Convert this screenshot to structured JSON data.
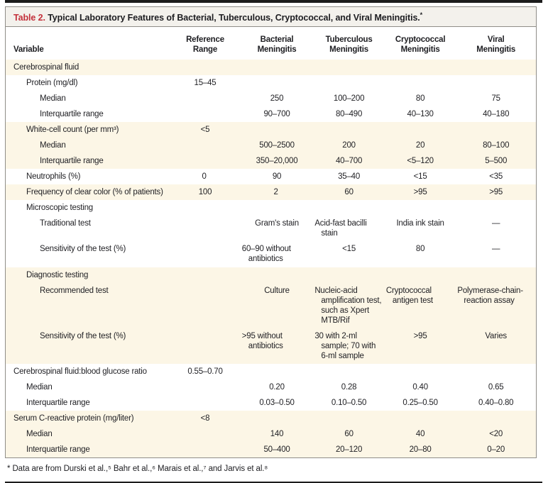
{
  "title": {
    "label": "Table 2.",
    "text": " Typical Laboratory Features of Bacterial, Tuberculous, Cryptococcal, and Viral Meningitis.",
    "marker": "*"
  },
  "accent_colors": {
    "table_label_red": "#c3303b",
    "shaded_row_cream": "#fcf6e6",
    "title_bar_gray": "#f3f1ec",
    "rule_black": "#1c1c1c",
    "border_gray": "#8f8d88"
  },
  "table": {
    "columns": [
      "Variable",
      "Reference\nRange",
      "Bacterial\nMeningitis",
      "Tuberculous\nMeningitis",
      "Cryptococcal\nMeningitis",
      "Viral\nMeningitis"
    ],
    "rows": [
      {
        "label": "Cerebrospinal fluid",
        "indent": 0,
        "shade": true,
        "values": [
          "",
          "",
          "",
          "",
          ""
        ]
      },
      {
        "label": "Protein (mg/dl)",
        "indent": 1,
        "shade": false,
        "values": [
          "15–45",
          "",
          "",
          "",
          ""
        ]
      },
      {
        "label": "Median",
        "indent": 2,
        "shade": false,
        "values": [
          "",
          "250",
          "100–200",
          "80",
          "75"
        ]
      },
      {
        "label": "Interquartile range",
        "indent": 2,
        "shade": false,
        "values": [
          "",
          "90–700",
          "80–490",
          "40–130",
          "40–180"
        ]
      },
      {
        "label": "White-cell count (per mm³)",
        "indent": 1,
        "shade": true,
        "values": [
          "<5",
          "",
          "",
          "",
          ""
        ]
      },
      {
        "label": "Median",
        "indent": 2,
        "shade": true,
        "values": [
          "",
          "500–2500",
          "200",
          "20",
          "80–100"
        ]
      },
      {
        "label": "Interquartile range",
        "indent": 2,
        "shade": true,
        "values": [
          "",
          "350–20,000",
          "40–700",
          "<5–120",
          "5–500"
        ]
      },
      {
        "label": "Neutrophils (%)",
        "indent": 1,
        "shade": false,
        "values": [
          "0",
          "90",
          "35–40",
          "<15",
          "<35"
        ]
      },
      {
        "label": "Frequency of clear color (% of patients)",
        "indent": 1,
        "shade": true,
        "values": [
          "100",
          "2",
          "60",
          ">95",
          ">95"
        ]
      },
      {
        "label": "Microscopic testing",
        "indent": 1,
        "shade": false,
        "values": [
          "",
          "",
          "",
          "",
          ""
        ]
      },
      {
        "label": "Traditional test",
        "indent": 2,
        "shade": false,
        "values": [
          "",
          "Gram's stain",
          "Acid-fast bacilli stain",
          "India ink stain",
          "—"
        ]
      },
      {
        "label": "Sensitivity of the test (%)",
        "indent": 2,
        "shade": false,
        "values": [
          "",
          "60–90 without antibiotics",
          "<15",
          "80",
          "—"
        ]
      },
      {
        "label": "Diagnostic testing",
        "indent": 1,
        "shade": true,
        "values": [
          "",
          "",
          "",
          "",
          ""
        ]
      },
      {
        "label": "Recommended test",
        "indent": 2,
        "shade": true,
        "values": [
          "",
          "Culture",
          "Nucleic-acid amplification test, such as Xpert MTB/Rif",
          "Cryptococcal antigen test",
          "Polymerase-chain-reaction assay"
        ]
      },
      {
        "label": "Sensitivity of the test (%)",
        "indent": 2,
        "shade": true,
        "values": [
          "",
          ">95 without antibiotics",
          "30 with 2-ml sample; 70 with 6-ml sample",
          ">95",
          "Varies"
        ]
      },
      {
        "label": "Cerebrospinal fluid:blood glucose ratio",
        "indent": 0,
        "shade": false,
        "values": [
          "0.55–0.70",
          "",
          "",
          "",
          ""
        ]
      },
      {
        "label": "Median",
        "indent": 1,
        "shade": false,
        "values": [
          "",
          "0.20",
          "0.28",
          "0.40",
          "0.65"
        ]
      },
      {
        "label": "Interquartile range",
        "indent": 1,
        "shade": false,
        "values": [
          "",
          "0.03–0.50",
          "0.10–0.50",
          "0.25–0.50",
          "0.40–0.80"
        ]
      },
      {
        "label": "Serum C-reactive protein (mg/liter)",
        "indent": 0,
        "shade": true,
        "values": [
          "<8",
          "",
          "",
          "",
          ""
        ]
      },
      {
        "label": "Median",
        "indent": 1,
        "shade": true,
        "values": [
          "",
          "140",
          "60",
          "40",
          "<20"
        ]
      },
      {
        "label": "Interquartile range",
        "indent": 1,
        "shade": true,
        "values": [
          "",
          "50–400",
          "20–120",
          "20–80",
          "0–20"
        ]
      }
    ]
  },
  "footnote": "* Data are from Durski et al.,⁵ Bahr et al.,⁶ Marais et al.,⁷ and Jarvis et al.⁸"
}
